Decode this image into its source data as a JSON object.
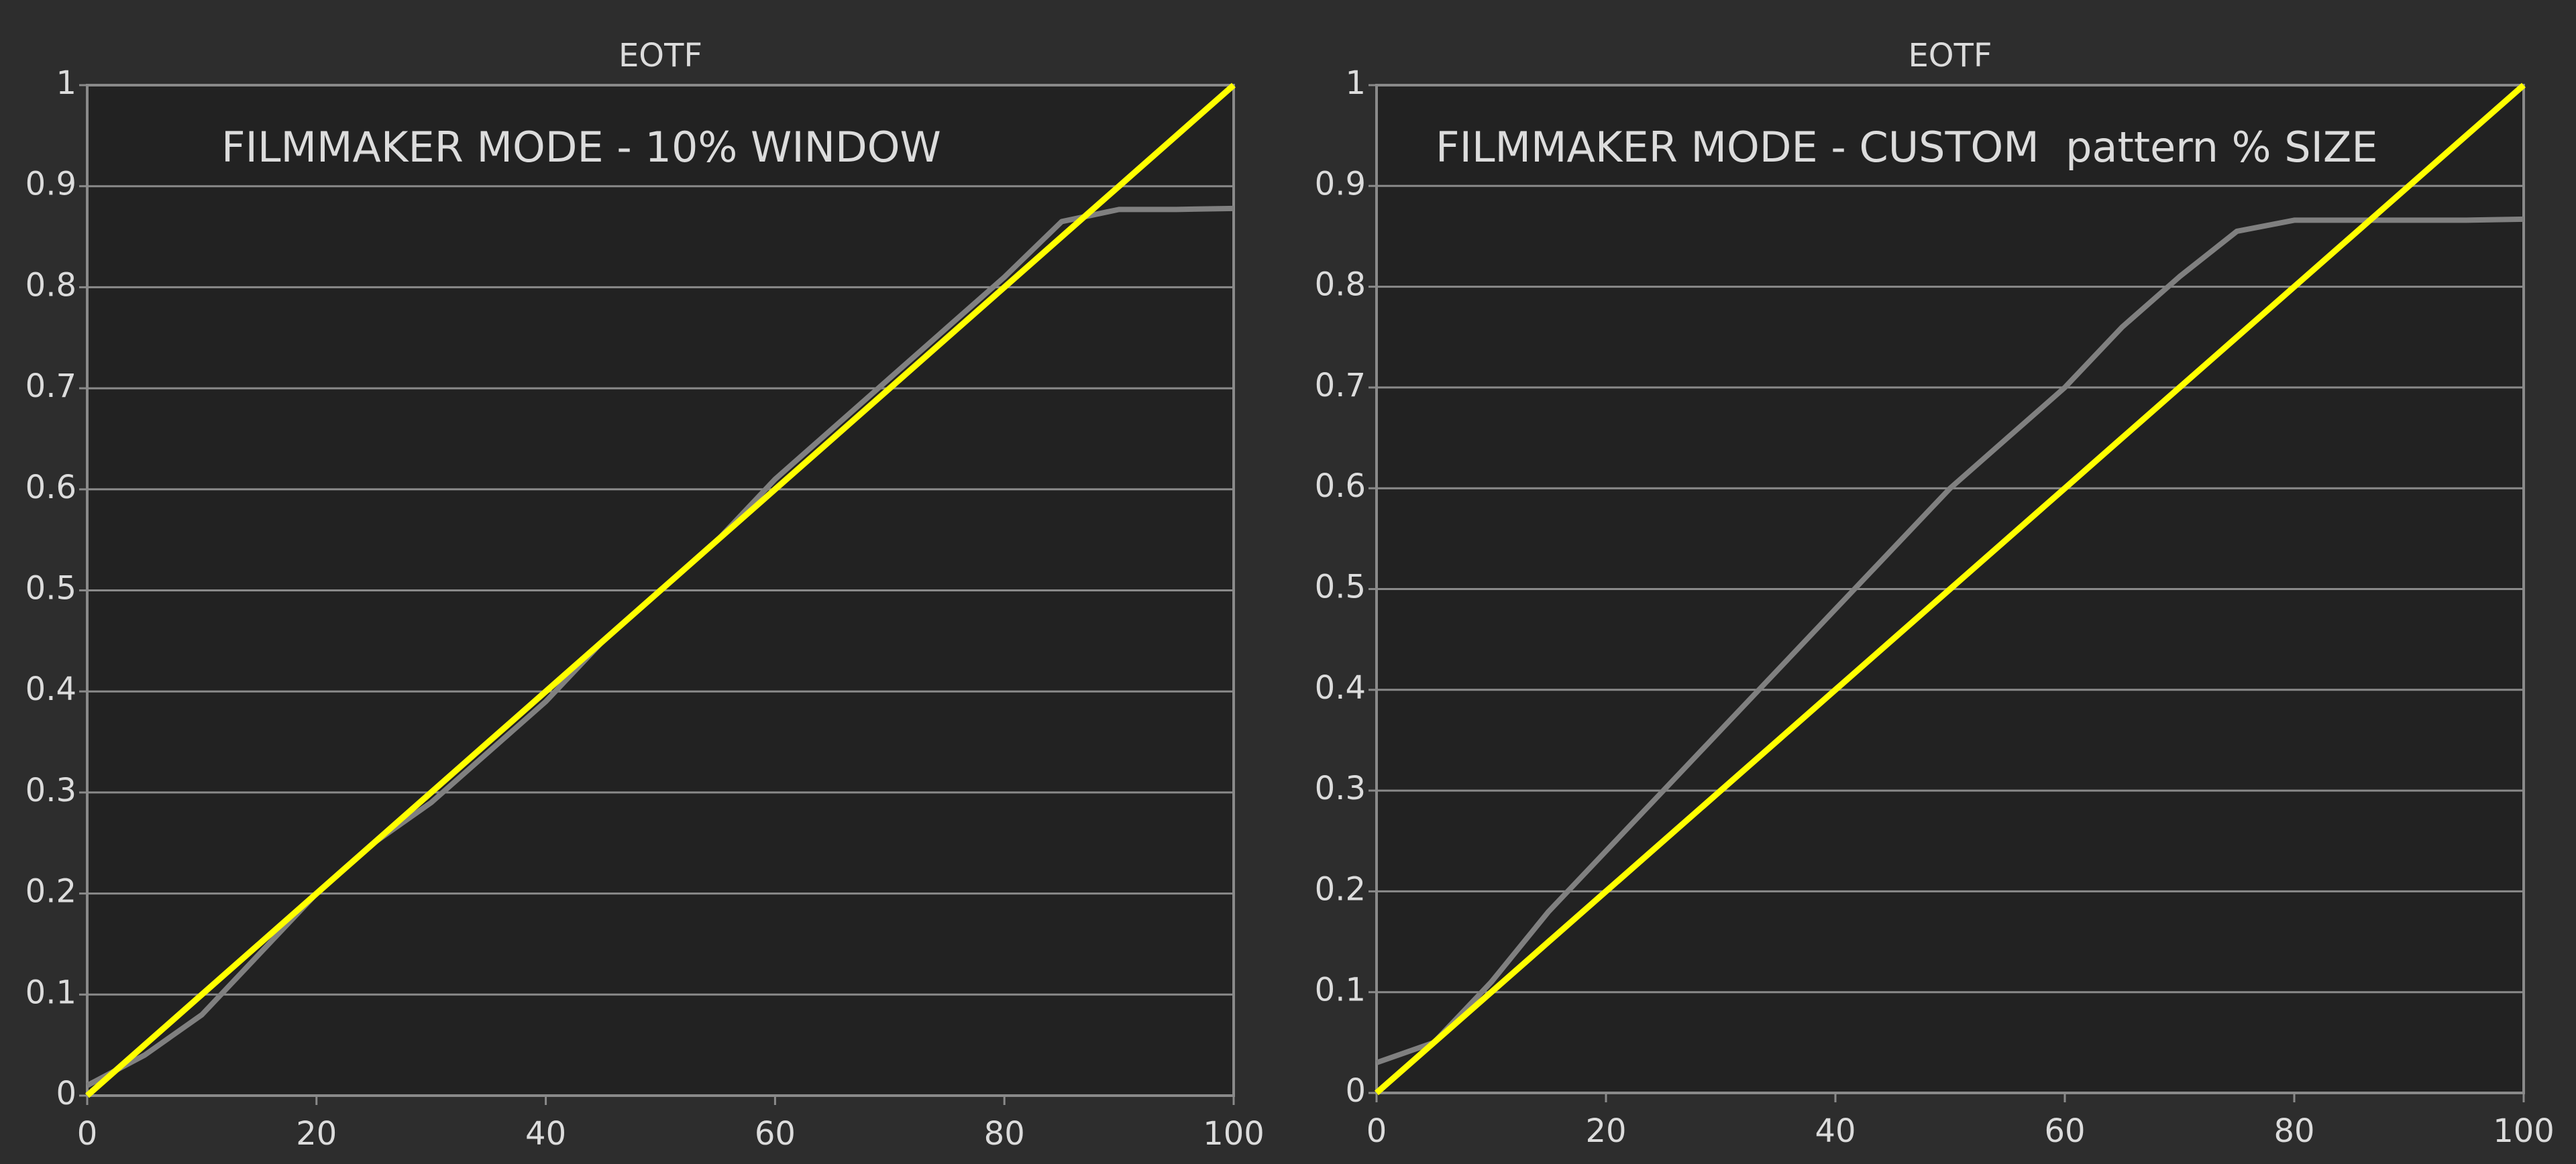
{
  "chart_data": [
    {
      "type": "line",
      "title": "EOTF",
      "annotation": "FILMMAKER MODE - 10% WINDOW",
      "x": [
        0,
        5,
        10,
        15,
        20,
        25,
        30,
        35,
        40,
        45,
        50,
        55,
        60,
        65,
        70,
        75,
        80,
        85,
        90,
        95,
        100
      ],
      "series": [
        {
          "color": "#ffff00",
          "values": [
            0,
            0.05,
            0.1,
            0.15,
            0.2,
            0.25,
            0.3,
            0.35,
            0.4,
            0.45,
            0.5,
            0.55,
            0.6,
            0.65,
            0.7,
            0.75,
            0.8,
            0.85,
            0.9,
            0.95,
            1
          ]
        },
        {
          "color": "#808080",
          "values": [
            0.01,
            0.04,
            0.08,
            0.14,
            0.2,
            0.25,
            0.29,
            0.34,
            0.39,
            0.45,
            0.5,
            0.55,
            0.61,
            0.66,
            0.71,
            0.76,
            0.81,
            0.865,
            0.877,
            0.877,
            0.878
          ]
        }
      ],
      "xlim": [
        0,
        100
      ],
      "xticks": [
        0,
        20,
        40,
        60,
        80,
        100
      ],
      "ylim": [
        0,
        1
      ],
      "yticks": [
        0,
        0.1,
        0.2,
        0.3,
        0.4,
        0.5,
        0.6,
        0.7,
        0.8,
        0.9,
        1
      ],
      "grid": true
    },
    {
      "type": "line",
      "title": "EOTF",
      "annotation": "FILMMAKER MODE - CUSTOM  pattern % SIZE",
      "x": [
        0,
        5,
        10,
        15,
        20,
        25,
        30,
        35,
        40,
        45,
        50,
        55,
        60,
        65,
        70,
        75,
        80,
        85,
        90,
        95,
        100
      ],
      "series": [
        {
          "color": "#ffff00",
          "values": [
            0,
            0.05,
            0.1,
            0.15,
            0.2,
            0.25,
            0.3,
            0.35,
            0.4,
            0.45,
            0.5,
            0.55,
            0.6,
            0.65,
            0.7,
            0.75,
            0.8,
            0.85,
            0.9,
            0.95,
            1
          ]
        },
        {
          "color": "#808080",
          "values": [
            0.03,
            0.05,
            0.11,
            0.18,
            0.24,
            0.3,
            0.36,
            0.42,
            0.48,
            0.54,
            0.6,
            0.65,
            0.7,
            0.76,
            0.81,
            0.855,
            0.866,
            0.866,
            0.866,
            0.866,
            0.867
          ]
        }
      ],
      "xlim": [
        0,
        100
      ],
      "xticks": [
        0,
        20,
        40,
        60,
        80,
        100
      ],
      "ylim": [
        0,
        1
      ],
      "yticks": [
        0,
        0.1,
        0.2,
        0.3,
        0.4,
        0.5,
        0.6,
        0.7,
        0.8,
        0.9,
        1
      ],
      "grid": true
    }
  ]
}
